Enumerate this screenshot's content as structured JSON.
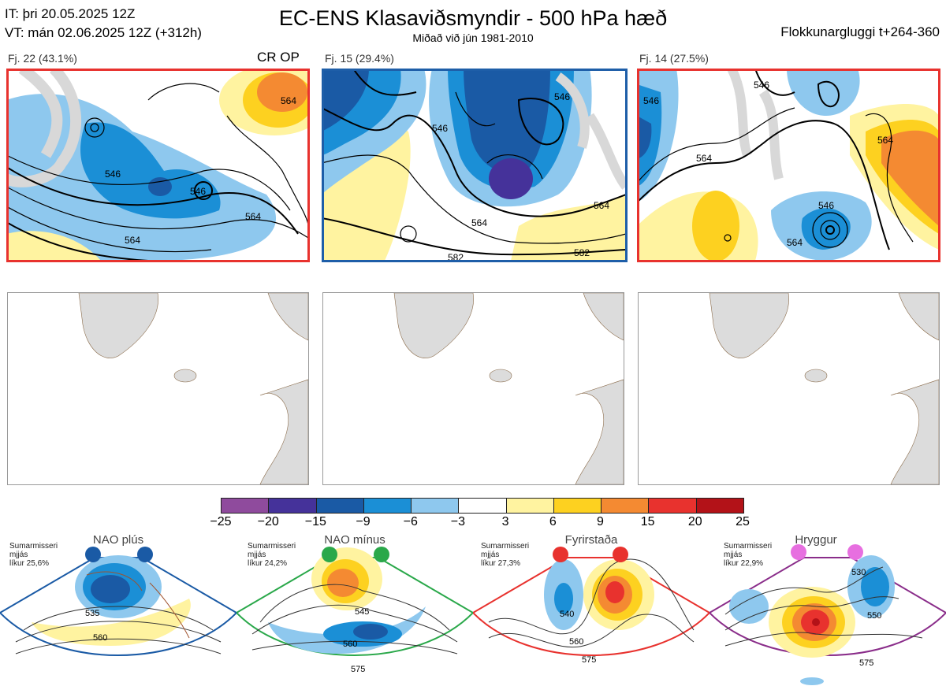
{
  "header": {
    "it_line": "IT: þri 20.05.2025 12Z",
    "vt_line": "VT: mán 02.06.2025 12Z  (+312h)",
    "title": "EC-ENS Klasaviðsmyndir - 500 hPa hæð",
    "subtitle": "Miðað við jún 1981-2010",
    "window": "Flokkunargluggi t+264-360"
  },
  "clusters": [
    {
      "label": "Fj. 22 (43.1%)",
      "extra": "CR OP",
      "frame_color": "#e8322e",
      "contour_labels": [
        "546",
        "546",
        "564",
        "564",
        "564"
      ]
    },
    {
      "label": "Fj. 15 (29.4%)",
      "extra": "",
      "frame_color": "#1e5ea8",
      "contour_labels": [
        "546",
        "546",
        "564",
        "564",
        "582",
        "582"
      ]
    },
    {
      "label": "Fj. 14 (27.5%)",
      "extra": "",
      "frame_color": "#e8322e",
      "contour_labels": [
        "546",
        "546",
        "546",
        "564",
        "564",
        "564"
      ]
    }
  ],
  "colorbar": {
    "ticks": [
      "−25",
      "−20",
      "−15",
      "−9",
      "−6",
      "−3",
      "3",
      "6",
      "9",
      "15",
      "20",
      "25"
    ],
    "colors": [
      "#8f4b9d",
      "#45329a",
      "#1a5aa5",
      "#1b8fd6",
      "#8ec8ee",
      "#ffffff",
      "#fff3a0",
      "#fdd120",
      "#f48a32",
      "#e8322e",
      "#b31218"
    ]
  },
  "regimes": [
    {
      "title": "NAO plús",
      "note": [
        "Sumarmisseri",
        "mjjás",
        "líkur 25,6%"
      ],
      "color": "#1a5aa5",
      "contour_labels": [
        "535",
        "560"
      ]
    },
    {
      "title": "NAO mínus",
      "note": [
        "Sumarmisseri",
        "mjjás",
        "líkur 24,2%"
      ],
      "color": "#2aa84a",
      "contour_labels": [
        "545",
        "560",
        "575"
      ]
    },
    {
      "title": "Fyrirstaða",
      "note": [
        "Sumarmisseri",
        "mjjás",
        "líkur 27,3%"
      ],
      "color": "#e8322e",
      "contour_labels": [
        "540",
        "560",
        "575"
      ]
    },
    {
      "title": "Hryggur",
      "note": [
        "Sumarmisseri",
        "mjjás",
        "líkur 22,9%"
      ],
      "color": "#e76fe0",
      "contour_labels": [
        "530",
        "550",
        "575"
      ]
    }
  ]
}
